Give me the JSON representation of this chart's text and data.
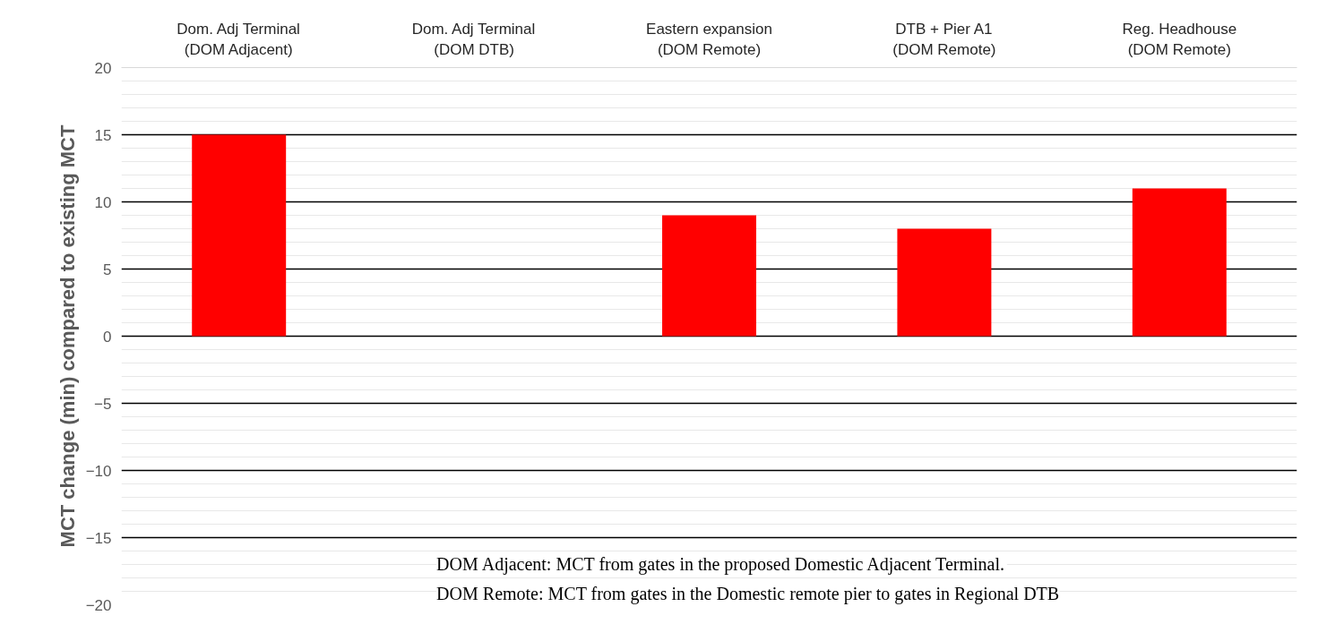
{
  "chart_data": {
    "type": "bar",
    "categories": [
      "Dom. Adj Terminal\n(DOM Adjacent)",
      "Dom. Adj Terminal\n(DOM DTB)",
      "Eastern expansion\n(DOM Remote)",
      "DTB + Pier A1\n(DOM Remote)",
      "Reg. Headhouse\n(DOM Remote)"
    ],
    "values": [
      15,
      null,
      9,
      8,
      11
    ],
    "color": "#ff0000",
    "ylabel": "MCT change (min) compared to existing MCT",
    "ylim": [
      -20,
      20
    ],
    "yticks": [
      -20,
      -15,
      -10,
      -5,
      0,
      5,
      10,
      15,
      20
    ],
    "grid": "y",
    "annotations": [
      "DOM Adjacent: MCT from gates in the proposed Domestic Adjacent Terminal.",
      "DOM Remote: MCT from gates in the Domestic remote pier to gates in Regional DTB"
    ]
  }
}
